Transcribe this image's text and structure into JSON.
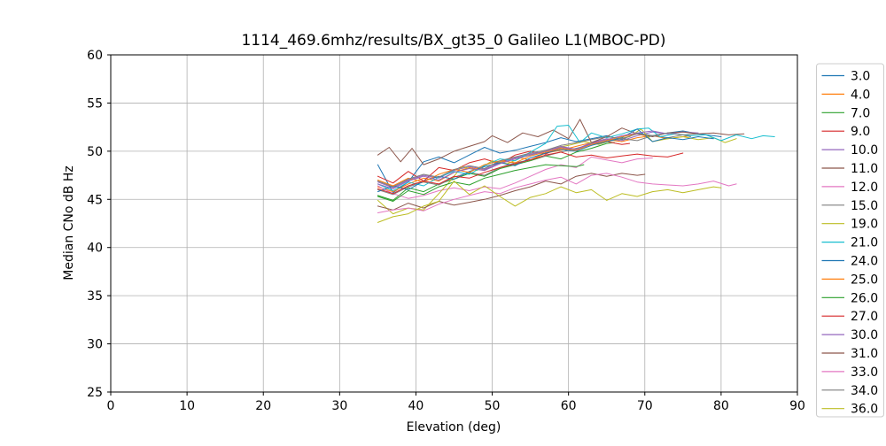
{
  "chart_data": {
    "type": "line",
    "title": "1114_469.6mhz/results/BX_gt35_0 Galileo L1(MBOC-PD)",
    "xlabel": "Elevation (deg)",
    "ylabel": "Median CNo dB Hz",
    "xlim": [
      0,
      90
    ],
    "ylim": [
      25,
      60
    ],
    "xticks": [
      0,
      10,
      20,
      30,
      40,
      50,
      60,
      70,
      80,
      90
    ],
    "yticks": [
      25,
      30,
      35,
      40,
      45,
      50,
      55,
      60
    ],
    "grid": true,
    "grid_color": "#b0b0b0",
    "spine_color": "#000000",
    "legend_position": "outside-right",
    "legend_border_color": "#cccccc",
    "series": [
      {
        "name": "3.0",
        "color": "#1f77b4",
        "x": [
          35,
          37,
          39,
          41,
          43,
          45,
          47,
          49,
          51,
          53,
          55,
          57,
          59,
          61,
          63,
          65,
          67,
          69,
          71,
          73,
          75,
          77,
          79,
          80
        ],
        "y": [
          48.6,
          45.7,
          46.8,
          48.9,
          49.4,
          48.8,
          49.6,
          50.4,
          49.8,
          50.1,
          50.5,
          50.9,
          51.4,
          51.0,
          51.3,
          51.6,
          51.2,
          51.9,
          51.6,
          51.9,
          52.1,
          51.8,
          51.6,
          51.5
        ]
      },
      {
        "name": "4.0",
        "color": "#ff7f0e",
        "x": [
          35,
          37,
          39,
          41,
          43,
          45,
          47,
          49,
          51,
          53,
          55,
          57,
          59,
          61,
          63,
          65,
          67,
          69,
          71,
          73,
          75,
          76
        ],
        "y": [
          46.3,
          45.8,
          46.6,
          47.2,
          46.9,
          47.8,
          48.3,
          48.0,
          48.9,
          49.4,
          49.1,
          49.8,
          50.1,
          50.5,
          50.9,
          51.2,
          51.0,
          51.4,
          51.6,
          51.3,
          51.5,
          51.6
        ]
      },
      {
        "name": "7.0",
        "color": "#2ca02c",
        "x": [
          35,
          37,
          39,
          41,
          43,
          45,
          47,
          49,
          51,
          53,
          55,
          57,
          59,
          61,
          63,
          65,
          66
        ],
        "y": [
          45.4,
          44.9,
          46.2,
          45.8,
          46.6,
          47.1,
          47.7,
          47.4,
          48.2,
          48.6,
          49.0,
          49.5,
          49.2,
          49.9,
          50.3,
          50.8,
          50.9
        ]
      },
      {
        "name": "9.0",
        "color": "#d62728",
        "x": [
          35,
          37,
          39,
          41,
          43,
          45,
          47,
          49,
          51,
          53,
          55,
          57,
          59,
          61,
          63,
          65,
          67,
          68
        ],
        "y": [
          47.4,
          46.7,
          47.9,
          46.9,
          48.3,
          48.0,
          48.8,
          49.2,
          48.7,
          49.6,
          50.0,
          49.7,
          50.4,
          50.2,
          50.8,
          51.0,
          50.7,
          50.8
        ]
      },
      {
        "name": "10.0",
        "color": "#9467bd",
        "x": [
          35,
          37,
          39,
          41,
          43,
          45,
          47,
          49,
          51,
          53,
          55,
          57,
          59,
          61,
          63,
          65,
          67,
          69,
          71,
          73,
          75,
          77
        ],
        "y": [
          46.8,
          46.2,
          47.0,
          47.5,
          47.2,
          48.0,
          48.4,
          48.1,
          48.8,
          49.3,
          49.7,
          50.0,
          50.4,
          50.2,
          50.9,
          51.3,
          51.1,
          51.6,
          52.0,
          51.8,
          52.0,
          51.9
        ]
      },
      {
        "name": "11.0",
        "color": "#8c564b",
        "x": [
          35,
          36.5,
          38,
          39.5,
          41,
          43,
          45,
          47,
          49,
          50,
          52,
          54,
          56,
          58,
          60,
          61.5,
          63,
          65,
          67,
          69,
          71,
          73,
          75,
          77,
          79,
          81,
          83
        ],
        "y": [
          49.6,
          50.4,
          48.9,
          50.3,
          48.6,
          49.2,
          50.0,
          50.5,
          51.0,
          51.6,
          50.9,
          51.9,
          51.5,
          52.2,
          51.3,
          53.3,
          50.9,
          51.5,
          52.4,
          51.8,
          51.5,
          51.9,
          52.0,
          51.8,
          51.9,
          51.7,
          51.8
        ]
      },
      {
        "name": "12.0",
        "color": "#e377c2",
        "x": [
          35,
          37,
          39,
          41,
          43,
          45,
          47,
          49,
          51,
          53,
          55,
          57,
          59,
          61,
          63,
          65,
          67,
          69,
          71
        ],
        "y": [
          46.4,
          45.6,
          45.1,
          45.4,
          45.9,
          46.2,
          45.9,
          46.3,
          46.1,
          46.7,
          47.4,
          48.1,
          48.6,
          48.3,
          49.4,
          49.1,
          48.8,
          49.2,
          49.3
        ]
      },
      {
        "name": "15.0",
        "color": "#7f7f7f",
        "x": [
          35,
          37,
          39,
          41,
          43,
          45,
          47,
          49,
          51,
          53,
          55,
          57,
          59,
          61,
          63,
          65,
          67,
          69,
          71,
          73,
          75,
          76
        ],
        "y": [
          46.0,
          45.5,
          46.3,
          46.8,
          46.5,
          47.3,
          47.8,
          47.5,
          48.3,
          48.8,
          49.1,
          49.5,
          49.9,
          50.3,
          50.7,
          51.0,
          51.3,
          51.1,
          51.6,
          51.4,
          51.7,
          51.5
        ]
      },
      {
        "name": "19.0",
        "color": "#bcbd22",
        "x": [
          35,
          37,
          39,
          41,
          43,
          44.5,
          46,
          48,
          50,
          52,
          54,
          56,
          58,
          60,
          62,
          64,
          66,
          68,
          69.5,
          71,
          73,
          75,
          77,
          79,
          80.5,
          82
        ],
        "y": [
          44.9,
          43.5,
          44.1,
          43.9,
          45.6,
          46.9,
          48.4,
          48.0,
          49.0,
          48.7,
          49.4,
          49.8,
          50.3,
          50.6,
          51.0,
          50.7,
          51.2,
          51.5,
          52.3,
          51.0,
          51.3,
          51.5,
          51.2,
          51.4,
          50.9,
          51.3
        ]
      },
      {
        "name": "21.0",
        "color": "#17becf",
        "x": [
          35,
          37,
          39,
          41,
          43,
          45,
          47,
          49,
          51,
          53,
          55,
          57,
          58.5,
          60,
          61.5,
          63,
          65,
          67,
          69,
          70.5,
          72,
          74,
          76,
          78,
          80,
          82,
          84,
          85.5,
          87
        ],
        "y": [
          46.6,
          45.9,
          46.8,
          46.4,
          47.3,
          47.9,
          47.6,
          48.5,
          49.2,
          49.0,
          49.9,
          50.8,
          52.6,
          52.7,
          50.9,
          51.9,
          51.4,
          51.8,
          52.3,
          52.4,
          51.5,
          51.8,
          51.6,
          51.7,
          51.1,
          51.7,
          51.3,
          51.6,
          51.5
        ]
      },
      {
        "name": "24.0",
        "color": "#1f77b4",
        "x": [
          35,
          37,
          39,
          41,
          43,
          45,
          47,
          49,
          51,
          53,
          55,
          57,
          59,
          61,
          63,
          65,
          67,
          69,
          71,
          73,
          75,
          77,
          79
        ],
        "y": [
          45.8,
          46.4,
          46.0,
          46.9,
          47.4,
          47.1,
          47.9,
          48.4,
          48.8,
          48.5,
          49.3,
          49.8,
          50.2,
          50.0,
          50.6,
          51.0,
          51.4,
          52.3,
          51.0,
          51.4,
          51.2,
          51.5,
          51.3
        ]
      },
      {
        "name": "25.0",
        "color": "#ff7f0e",
        "x": [
          35,
          37,
          39,
          41,
          43,
          45,
          47,
          49,
          51,
          53,
          55,
          57,
          59,
          61,
          63,
          65,
          67,
          69,
          70
        ],
        "y": [
          47.0,
          46.4,
          47.2,
          46.8,
          47.6,
          48.1,
          47.8,
          48.6,
          49.0,
          48.8,
          49.5,
          49.9,
          50.3,
          50.1,
          50.7,
          51.1,
          51.5,
          51.8,
          51.6
        ]
      },
      {
        "name": "26.0",
        "color": "#2ca02c",
        "x": [
          35,
          37,
          39,
          41,
          43,
          45,
          47,
          49,
          51,
          53,
          55,
          57,
          59,
          61,
          62
        ],
        "y": [
          45.3,
          44.8,
          45.9,
          45.5,
          46.3,
          46.8,
          46.5,
          47.2,
          47.6,
          48.0,
          48.3,
          48.6,
          48.5,
          48.4,
          48.6
        ]
      },
      {
        "name": "27.0",
        "color": "#d62728",
        "x": [
          35,
          37,
          39,
          41,
          43,
          45,
          47,
          49,
          51,
          53,
          55,
          57,
          59,
          61,
          63,
          65,
          67,
          69,
          71,
          73,
          75
        ],
        "y": [
          46.1,
          45.6,
          46.4,
          46.9,
          46.6,
          47.4,
          47.2,
          47.8,
          48.3,
          48.7,
          49.1,
          49.6,
          49.9,
          49.4,
          49.6,
          49.3,
          49.5,
          49.7,
          49.5,
          49.4,
          49.8
        ]
      },
      {
        "name": "30.0",
        "color": "#9467bd",
        "x": [
          35,
          37,
          39,
          41,
          43,
          45,
          47,
          49,
          51,
          53,
          55,
          57,
          59,
          61,
          63,
          65,
          67,
          69,
          71,
          73,
          74
        ],
        "y": [
          46.6,
          46.1,
          46.9,
          47.4,
          47.0,
          47.8,
          48.2,
          48.0,
          48.7,
          49.2,
          49.6,
          50.0,
          50.5,
          50.2,
          50.8,
          51.2,
          51.6,
          51.9,
          52.1,
          51.8,
          51.9
        ]
      },
      {
        "name": "31.0",
        "color": "#8c564b",
        "x": [
          35,
          37,
          39,
          41,
          43,
          45,
          47,
          49,
          51,
          53,
          55,
          57,
          59,
          61,
          63,
          65,
          67,
          69,
          70
        ],
        "y": [
          44.3,
          43.9,
          44.6,
          44.1,
          44.8,
          44.4,
          44.7,
          45.0,
          45.4,
          45.9,
          46.3,
          46.9,
          46.6,
          47.4,
          47.7,
          47.4,
          47.7,
          47.5,
          47.6
        ]
      },
      {
        "name": "33.0",
        "color": "#e377c2",
        "x": [
          35,
          37,
          39,
          41,
          43,
          45,
          47,
          49,
          51,
          53,
          55,
          57,
          59,
          61,
          63,
          65,
          67,
          69,
          71,
          73,
          75,
          77,
          79,
          81,
          82
        ],
        "y": [
          43.6,
          43.9,
          44.1,
          43.8,
          44.5,
          45.0,
          45.4,
          45.8,
          45.6,
          46.2,
          46.6,
          47.0,
          47.3,
          46.6,
          47.5,
          47.7,
          47.3,
          46.8,
          46.6,
          46.5,
          46.4,
          46.6,
          46.9,
          46.4,
          46.6
        ]
      },
      {
        "name": "34.0",
        "color": "#7f7f7f",
        "x": [
          35,
          37,
          39,
          41,
          43,
          45,
          47,
          49,
          51,
          53,
          55,
          57,
          59,
          61,
          63,
          65,
          67,
          69,
          71,
          73,
          75,
          77
        ],
        "y": [
          46.9,
          46.3,
          47.1,
          47.6,
          47.3,
          48.1,
          48.5,
          48.2,
          49.0,
          49.4,
          49.8,
          50.1,
          50.6,
          50.9,
          51.2,
          51.5,
          51.3,
          51.8,
          51.6,
          51.9,
          51.7,
          51.8
        ]
      },
      {
        "name": "36.0",
        "color": "#bcbd22",
        "x": [
          35,
          37,
          39,
          41,
          43,
          45,
          47,
          49,
          51,
          53,
          55,
          57,
          59,
          61,
          63,
          65,
          67,
          69,
          71,
          73,
          75,
          77,
          79,
          80
        ],
        "y": [
          42.6,
          43.2,
          43.5,
          44.3,
          44.8,
          46.9,
          45.5,
          46.4,
          45.3,
          44.3,
          45.2,
          45.6,
          46.3,
          45.7,
          46.0,
          44.9,
          45.6,
          45.3,
          45.8,
          46.0,
          45.7,
          46.0,
          46.3,
          46.2
        ]
      }
    ]
  }
}
